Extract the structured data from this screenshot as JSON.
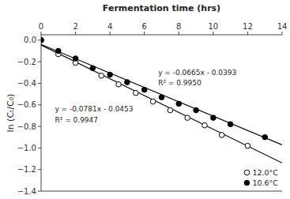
{
  "chart_data": {
    "type": "scatter",
    "xlabel": "Fermentation time (hrs)",
    "ylabel": "ln (Cₜ/C₀)",
    "xlim": [
      0,
      14
    ],
    "ylim": [
      -1.4,
      0.05
    ],
    "xticks": [
      0,
      2,
      4,
      6,
      8,
      10,
      12,
      14
    ],
    "yticks": [
      {
        "value": 0.0,
        "label": "0.0"
      },
      {
        "value": -0.2,
        "label": "−0.2"
      },
      {
        "value": -0.4,
        "label": "−0.4"
      },
      {
        "value": -0.6,
        "label": "−0.6"
      },
      {
        "value": -0.8,
        "label": "−0.8"
      },
      {
        "value": -1.0,
        "label": "−1.0"
      },
      {
        "value": -1.2,
        "label": "−1.2"
      },
      {
        "value": -1.4,
        "label": "−1.4"
      }
    ],
    "grid": false,
    "legend": "lower right",
    "series": [
      {
        "type": "line",
        "color": "black",
        "line_style": "solid",
        "x": [
          0,
          14
        ],
        "values": [
          -0.0453,
          -1.1387
        ]
      },
      {
        "type": "line",
        "color": "black",
        "line_style": "solid",
        "x": [
          0,
          14
        ],
        "values": [
          -0.0393,
          -0.9703
        ]
      },
      {
        "type": "scatter",
        "name": "12.0°C",
        "color": "black",
        "marker": "open-circle",
        "x": [
          0,
          1.0,
          2.0,
          3.5,
          4.5,
          5.5,
          6.5,
          7.5,
          8.5,
          9.5,
          10.5,
          12.0
        ],
        "values": [
          0.0,
          -0.13,
          -0.21,
          -0.33,
          -0.41,
          -0.49,
          -0.57,
          -0.65,
          -0.72,
          -0.79,
          -0.88,
          -0.98
        ]
      },
      {
        "type": "scatter",
        "name": "10.6°C",
        "color": "black",
        "marker": "circle",
        "x": [
          0,
          1.0,
          2.0,
          3.0,
          4.0,
          5.0,
          6.0,
          7.0,
          8.0,
          9.0,
          10.0,
          11.0,
          13.0
        ],
        "values": [
          0.0,
          -0.1,
          -0.17,
          -0.26,
          -0.32,
          -0.39,
          -0.46,
          -0.53,
          -0.59,
          -0.65,
          -0.72,
          -0.78,
          -0.9
        ]
      }
    ],
    "annotations": [
      {
        "text": "y = -0.0781x - 0.0453",
        "x": 0.8,
        "y": -0.64
      },
      {
        "text": "R² = 0.9947",
        "x": 0.8,
        "y": -0.74
      },
      {
        "text": "y = -0.0665x - 0.0393",
        "x": 6.8,
        "y": -0.3
      },
      {
        "text": "R² = 0.9950",
        "x": 6.8,
        "y": -0.4
      }
    ]
  }
}
